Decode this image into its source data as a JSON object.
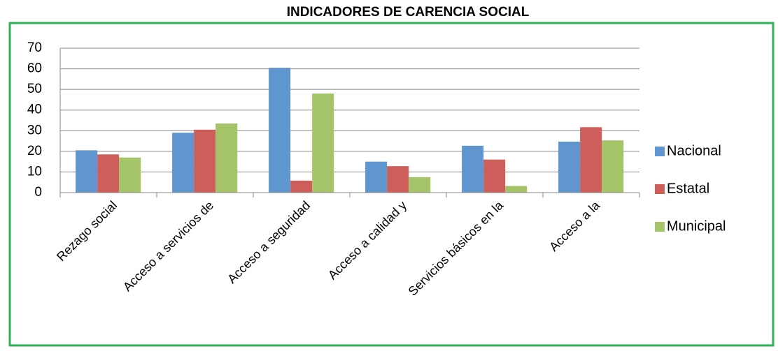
{
  "chart_data": {
    "type": "bar",
    "title": "INDICADORES DE CARENCIA SOCIAL",
    "categories": [
      "Rezago social",
      "Acceso a servicios de",
      "Acceso a seguridad",
      "Acceso a calidad y",
      "Servicios básicos en la",
      "Acceso a la"
    ],
    "series": [
      {
        "name": "Nacional",
        "color": "#6096cf",
        "values": [
          20.5,
          29,
          60.5,
          15,
          22.7,
          24.7
        ]
      },
      {
        "name": "Estatal",
        "color": "#cd5e5a",
        "values": [
          18.5,
          30.5,
          5.8,
          12.8,
          16,
          31.7
        ]
      },
      {
        "name": "Municipal",
        "color": "#a5c46a",
        "values": [
          17,
          33.5,
          48,
          7.5,
          3.2,
          25.3
        ]
      }
    ],
    "ylim": [
      0,
      70
    ],
    "yticks": [
      0,
      10,
      20,
      30,
      40,
      50,
      60,
      70
    ],
    "grid": true,
    "legend": "right"
  }
}
